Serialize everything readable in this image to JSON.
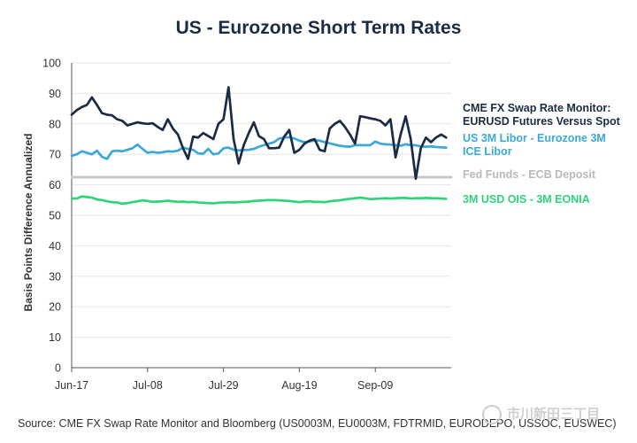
{
  "chart_data": {
    "type": "line",
    "title": "US - Eurozone Short Term Rates",
    "ylabel": "Basis Points Difference Annualized",
    "xlabel": "",
    "ylim": [
      0,
      100
    ],
    "yticks": [
      0,
      10,
      20,
      30,
      40,
      50,
      60,
      70,
      80,
      90,
      100
    ],
    "x_tick_labels": [
      {
        "label": "Jun-17",
        "index": 0
      },
      {
        "label": "Jul-08",
        "index": 15
      },
      {
        "label": "Jul-29",
        "index": 30
      },
      {
        "label": "Aug-19",
        "index": 45
      },
      {
        "label": "Sep-09",
        "index": 60
      }
    ],
    "grid": "horizontal",
    "legend": "right",
    "series": [
      {
        "name": "Fed Funds - ECB Deposit",
        "color": "#c8c8c8",
        "values": [
          62.5,
          62.5,
          62.5,
          62.5,
          62.5,
          62.5,
          62.5,
          62.5,
          62.5,
          62.5,
          62.5,
          62.5,
          62.5,
          62.5,
          62.5,
          62.5,
          62.5,
          62.5,
          62.5,
          62.5,
          62.5,
          62.5,
          62.5,
          62.5,
          62.5,
          62.5,
          62.5,
          62.5,
          62.5,
          62.5,
          62.5,
          62.5,
          62.5,
          62.5,
          62.5,
          62.5,
          62.5,
          62.5,
          62.5,
          62.5,
          62.5,
          62.5,
          62.5,
          62.5,
          62.5,
          62.5,
          62.5,
          62.5,
          62.5,
          62.5,
          62.5,
          62.5,
          62.5,
          62.5,
          62.5,
          62.5,
          62.5,
          62.5,
          62.5,
          62.5,
          62.5,
          62.5,
          62.5,
          62.5,
          62.5,
          62.5,
          62.5,
          62.5,
          62.5,
          62.5,
          62.5,
          62.5,
          62.5,
          62.5,
          62.5,
          62.5
        ]
      },
      {
        "name": "3M USD OIS - 3M EONIA",
        "color": "#2ed47a",
        "values": [
          55.5,
          55.5,
          56.2,
          56.0,
          55.8,
          55.2,
          55.0,
          54.6,
          54.3,
          54.2,
          53.8,
          54.0,
          54.3,
          54.6,
          54.9,
          54.7,
          54.4,
          54.5,
          54.6,
          54.8,
          54.6,
          54.4,
          54.5,
          54.3,
          54.4,
          54.2,
          54.1,
          54.0,
          53.9,
          54.1,
          54.2,
          54.3,
          54.2,
          54.3,
          54.4,
          54.5,
          54.7,
          54.8,
          54.9,
          55.0,
          55.0,
          54.9,
          54.8,
          54.7,
          54.5,
          54.3,
          54.5,
          54.6,
          54.4,
          54.4,
          54.3,
          54.6,
          54.8,
          54.9,
          55.2,
          55.4,
          55.6,
          55.8,
          55.6,
          55.3,
          55.4,
          55.5,
          55.6,
          55.5,
          55.6,
          55.7,
          55.7,
          55.5,
          55.6,
          55.6,
          55.7,
          55.6,
          55.6,
          55.5,
          55.4
        ]
      },
      {
        "name": "US 3M Libor - Eurozone 3M ICE Libor",
        "color": "#3ba8d9",
        "values": [
          69.5,
          70.0,
          71.0,
          70.5,
          70.0,
          71.2,
          69.2,
          68.5,
          71.0,
          71.2,
          71.0,
          71.5,
          72.0,
          73.2,
          71.8,
          70.5,
          70.8,
          70.5,
          70.7,
          71.0,
          70.9,
          71.2,
          72.2,
          71.8,
          71.5,
          70.3,
          70.2,
          71.8,
          70.0,
          70.3,
          72.0,
          72.2,
          71.5,
          71.3,
          71.4,
          71.5,
          71.8,
          72.5,
          73.0,
          73.5,
          74.0,
          75.2,
          75.5,
          75.6,
          75.2,
          74.5,
          74.0,
          74.2,
          74.6,
          74.5,
          74.0,
          73.6,
          73.2,
          72.8,
          72.6,
          72.5,
          73.0,
          73.0,
          73.0,
          73.0,
          74.2,
          73.5,
          73.3,
          73.2,
          73.0,
          72.8,
          73.3,
          73.0,
          73.0,
          72.6,
          72.5,
          72.6,
          72.4,
          72.3,
          72.2
        ]
      },
      {
        "name": "CME FX Swap Rate Monitor: EURUSD Futures Versus Spot",
        "color": "#1b2b46",
        "values": [
          83.0,
          84.5,
          85.5,
          86.2,
          88.7,
          86.2,
          83.5,
          83.0,
          82.8,
          81.5,
          81.0,
          79.5,
          80.0,
          80.5,
          80.2,
          80.0,
          80.2,
          79.0,
          78.0,
          81.5,
          78.5,
          76.5,
          72.0,
          68.5,
          75.8,
          75.5,
          77.0,
          76.0,
          75.0,
          80.0,
          81.5,
          92.0,
          75.0,
          67.0,
          73.0,
          77.0,
          80.5,
          76.0,
          75.0,
          72.0,
          72.0,
          72.2,
          75.8,
          78.0,
          70.5,
          71.5,
          73.5,
          74.5,
          75.0,
          71.5,
          71.0,
          78.5,
          80.0,
          81.0,
          79.0,
          76.5,
          73.5,
          82.5,
          82.2,
          81.8,
          81.5,
          81.0,
          79.5,
          81.5,
          69.0,
          76.5,
          82.5,
          75.0,
          62.0,
          72.0,
          75.5,
          74.0,
          75.5,
          76.5,
          75.5
        ]
      }
    ]
  },
  "legend": [
    {
      "text": "CME FX Swap Rate Monitor: EURUSD Futures Versus Spot",
      "lines": [
        "CME FX Swap Rate Monitor:",
        "EURUSD Futures Versus Spot"
      ],
      "color": "#1b2b46"
    },
    {
      "text": "US 3M Libor - Eurozone 3M ICE Libor",
      "lines": [
        "US 3M Libor - Eurozone 3M",
        "ICE Libor"
      ],
      "color": "#3ba8d9"
    },
    {
      "text": "Fed Funds - ECB Deposit",
      "lines": [
        "Fed Funds - ECB Deposit"
      ],
      "color": "#b9b9b9"
    },
    {
      "text": "3M USD OIS - 3M EONIA",
      "lines": [
        "3M USD OIS - 3M EONIA"
      ],
      "color": "#2ed47a"
    }
  ],
  "source": "Source: CME FX Swap Rate Monitor and Bloomberg (US0003M, EU0003M, FDTRMID, EURODEPO, USSOC, EUSWEC)",
  "watermark": "市川新田三丁目"
}
